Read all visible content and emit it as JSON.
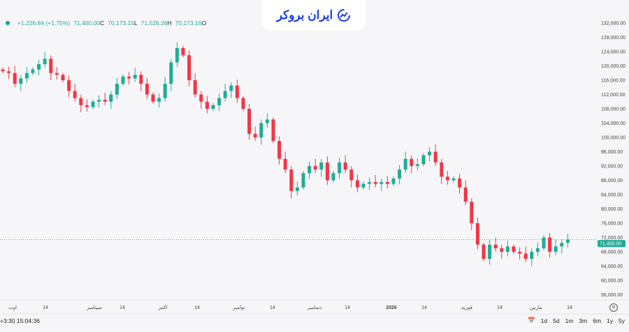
{
  "logo": {
    "text": "ایران بروکر"
  },
  "legend": {
    "change": "+1,226.84 (+1.75%)",
    "close": "71,400.00",
    "close_key": "C",
    "low": "70,173.15",
    "low_key": "L",
    "high": "71,528.26",
    "high_key": "H",
    "open": "70,173.16",
    "open_key": "O"
  },
  "last_price_label": "71,400.00",
  "footer": {
    "time": "+3:30 15:04:36",
    "ranges": [
      "1d",
      "5d",
      "1m",
      "3m",
      "6m",
      "1y",
      "5y"
    ]
  },
  "colors": {
    "up": "#22ab94",
    "down": "#f23645",
    "bg": "#f6f6f9"
  },
  "chart_data": {
    "type": "candlestick",
    "y_ticks": [
      132000,
      128000,
      124000,
      120000,
      116000,
      112000,
      108000,
      104000,
      100000,
      96000,
      92000,
      88000,
      84000,
      80000,
      76000,
      72000,
      68000,
      64000,
      60000,
      56000
    ],
    "ylim": [
      52000,
      132000
    ],
    "x_ticks": [
      "اوت",
      "14",
      "سپتامبر",
      "14",
      "اکتبر",
      "14",
      "نوامبر",
      "14",
      "دسامبر",
      "14",
      "2026",
      "14",
      "فوریه",
      "14",
      "مارس",
      "14"
    ],
    "closes_thousands": [
      118.5,
      118,
      115,
      116.5,
      118,
      119,
      120.5,
      122,
      118,
      117.5,
      116,
      113,
      111,
      109,
      108.5,
      110,
      110.5,
      110,
      112,
      115,
      117,
      116.5,
      117.5,
      115,
      112,
      110,
      111,
      115,
      121,
      125,
      123,
      116,
      112,
      110,
      108,
      109,
      111,
      113,
      114.5,
      111,
      108,
      101,
      100,
      104,
      105,
      99,
      94,
      91,
      85,
      86,
      90,
      92,
      91,
      93,
      88,
      90,
      93,
      91,
      88,
      86,
      87,
      87.5,
      87,
      87.5,
      87,
      88.5,
      91,
      94,
      92,
      92.5,
      95,
      96,
      93,
      89,
      88,
      88.5,
      86,
      82,
      76,
      70,
      66,
      70,
      69,
      68,
      69.5,
      68,
      67.5,
      66,
      68,
      69,
      72,
      68,
      69.5,
      70.5,
      71.4
    ],
    "first_open_thousands": 119,
    "last_price": 71400
  }
}
